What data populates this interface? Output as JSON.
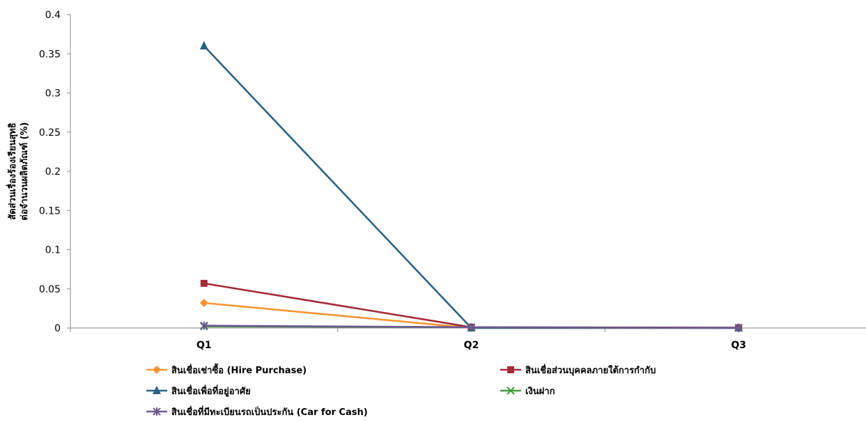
{
  "chart_data": {
    "type": "line",
    "title": "",
    "xlabel": "",
    "ylabel_lines": [
      "สัดส่วนเรื่องร้องเรียนสุทธิ",
      "ต่อจำนวนผลิตภัณฑ์ (%)"
    ],
    "categories": [
      "Q1",
      "Q2",
      "Q3"
    ],
    "ylim": [
      0,
      0.4
    ],
    "yticks": [
      0,
      0.05,
      0.1,
      0.15,
      0.2,
      0.25,
      0.3,
      0.35,
      0.4
    ],
    "ytick_labels": [
      "0",
      "0.05",
      "0.1",
      "0.15",
      "0.2",
      "0.25",
      "0.3",
      "0.35",
      "0.4"
    ],
    "grid": false,
    "legend_position": "bottom",
    "series": [
      {
        "name": "สินเชื่อเช่าซื้อ (Hire Purchase)",
        "values": [
          0.032,
          0.0,
          0.0
        ],
        "color": "#f79633",
        "marker": "diamond"
      },
      {
        "name": "สินเชื่อส่วนบุคคลภายใต้การกำกับ",
        "values": [
          0.057,
          0.001,
          0.0005
        ],
        "color": "#a52a3a",
        "marker": "square"
      },
      {
        "name": "สินเชื่อเพื่อที่อยู่อาศัย",
        "values": [
          0.36,
          0.0,
          0.0
        ],
        "color": "#2a6285",
        "marker": "triangle"
      },
      {
        "name": "เงินฝาก",
        "values": [
          0.002,
          0.001,
          0.0
        ],
        "color": "#3f9b3f",
        "marker": "x"
      },
      {
        "name": "สินเชื่อที่มีทะเบียนรถเป็นประกัน (Car for Cash)",
        "values": [
          0.003,
          0.001,
          0.0
        ],
        "color": "#6d5a91",
        "marker": "star"
      }
    ]
  }
}
